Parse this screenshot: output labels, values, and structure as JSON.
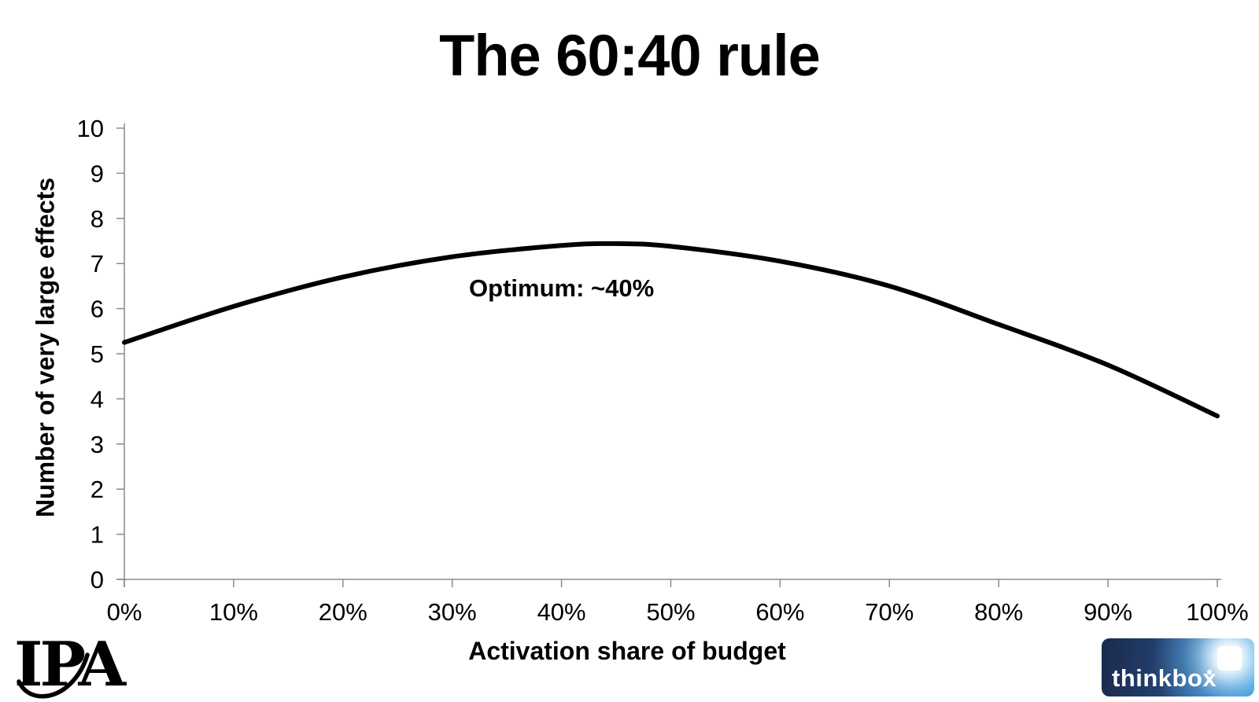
{
  "title": "The 60:40 rule",
  "chart_data": {
    "type": "line",
    "title": "The 60:40 rule",
    "xlabel": "Activation share of budget",
    "ylabel": "Number of very large effects",
    "xlim": [
      0,
      100
    ],
    "ylim": [
      0,
      10
    ],
    "grid": false,
    "legend": "none",
    "x_tick_values": [
      0,
      10,
      20,
      30,
      40,
      50,
      60,
      70,
      80,
      90,
      100
    ],
    "x_tick_labels": [
      "0%",
      "10%",
      "20%",
      "30%",
      "40%",
      "50%",
      "60%",
      "70%",
      "80%",
      "90%",
      "100%"
    ],
    "y_tick_values": [
      0,
      1,
      2,
      3,
      4,
      5,
      6,
      7,
      8,
      9,
      10
    ],
    "y_tick_labels": [
      "0",
      "1",
      "2",
      "3",
      "4",
      "5",
      "6",
      "7",
      "8",
      "9",
      "10"
    ],
    "series": [
      {
        "name": "Number of very large effects",
        "x": [
          0,
          10,
          20,
          30,
          40,
          45,
          50,
          60,
          70,
          80,
          90,
          100
        ],
        "y": [
          5.25,
          6.05,
          6.7,
          7.15,
          7.4,
          7.44,
          7.38,
          7.05,
          6.5,
          5.65,
          4.75,
          3.62
        ]
      }
    ],
    "annotation": {
      "text": "Optimum: ~40%",
      "x": 40,
      "y": 6.45
    },
    "line_color": "#000000",
    "axis_color": "#8a8a8a",
    "text_color": "#000000"
  },
  "logos": {
    "ipa_text": "IPA",
    "thinkbox_text": "thinkbox"
  }
}
